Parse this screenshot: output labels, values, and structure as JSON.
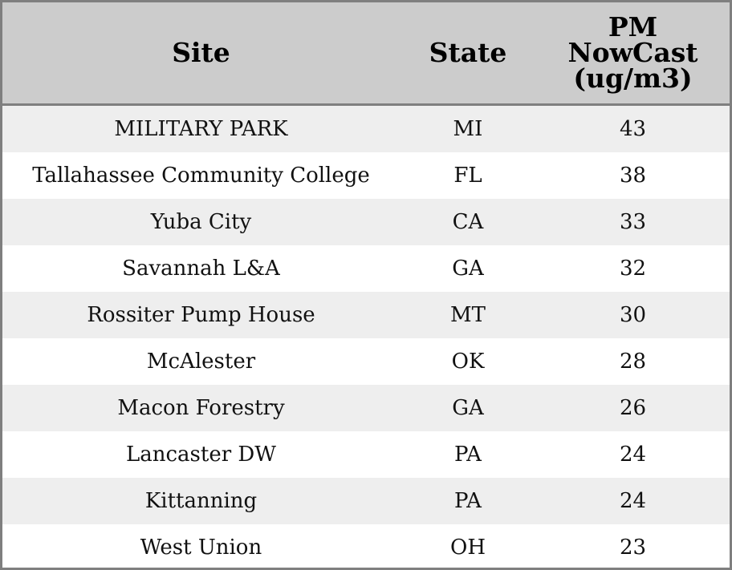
{
  "table": {
    "columns": [
      "Site",
      "State",
      "PM NowCast (ug/m3)"
    ],
    "pm_header_lines": [
      "PM",
      "NowCast",
      "(ug/m3)"
    ]
  },
  "chart_data": {
    "type": "table",
    "columns": [
      "Site",
      "State",
      "PM NowCast (ug/m3)"
    ],
    "rows": [
      {
        "site": "MILITARY PARK",
        "state": "MI",
        "pm": 43
      },
      {
        "site": "Tallahassee Community College",
        "state": "FL",
        "pm": 38
      },
      {
        "site": "Yuba City",
        "state": "CA",
        "pm": 33
      },
      {
        "site": "Savannah L&A",
        "state": "GA",
        "pm": 32
      },
      {
        "site": "Rossiter Pump House",
        "state": "MT",
        "pm": 30
      },
      {
        "site": "McAlester",
        "state": "OK",
        "pm": 28
      },
      {
        "site": "Macon Forestry",
        "state": "GA",
        "pm": 26
      },
      {
        "site": "Lancaster DW",
        "state": "PA",
        "pm": 24
      },
      {
        "site": "Kittanning",
        "state": "PA",
        "pm": 24
      },
      {
        "site": "West Union",
        "state": "OH",
        "pm": 23
      }
    ]
  },
  "colors": {
    "header_bg": "#cccccc",
    "row_alt_bg": "#eeeeee",
    "row_bg": "#ffffff",
    "border": "#7f7f7f"
  }
}
